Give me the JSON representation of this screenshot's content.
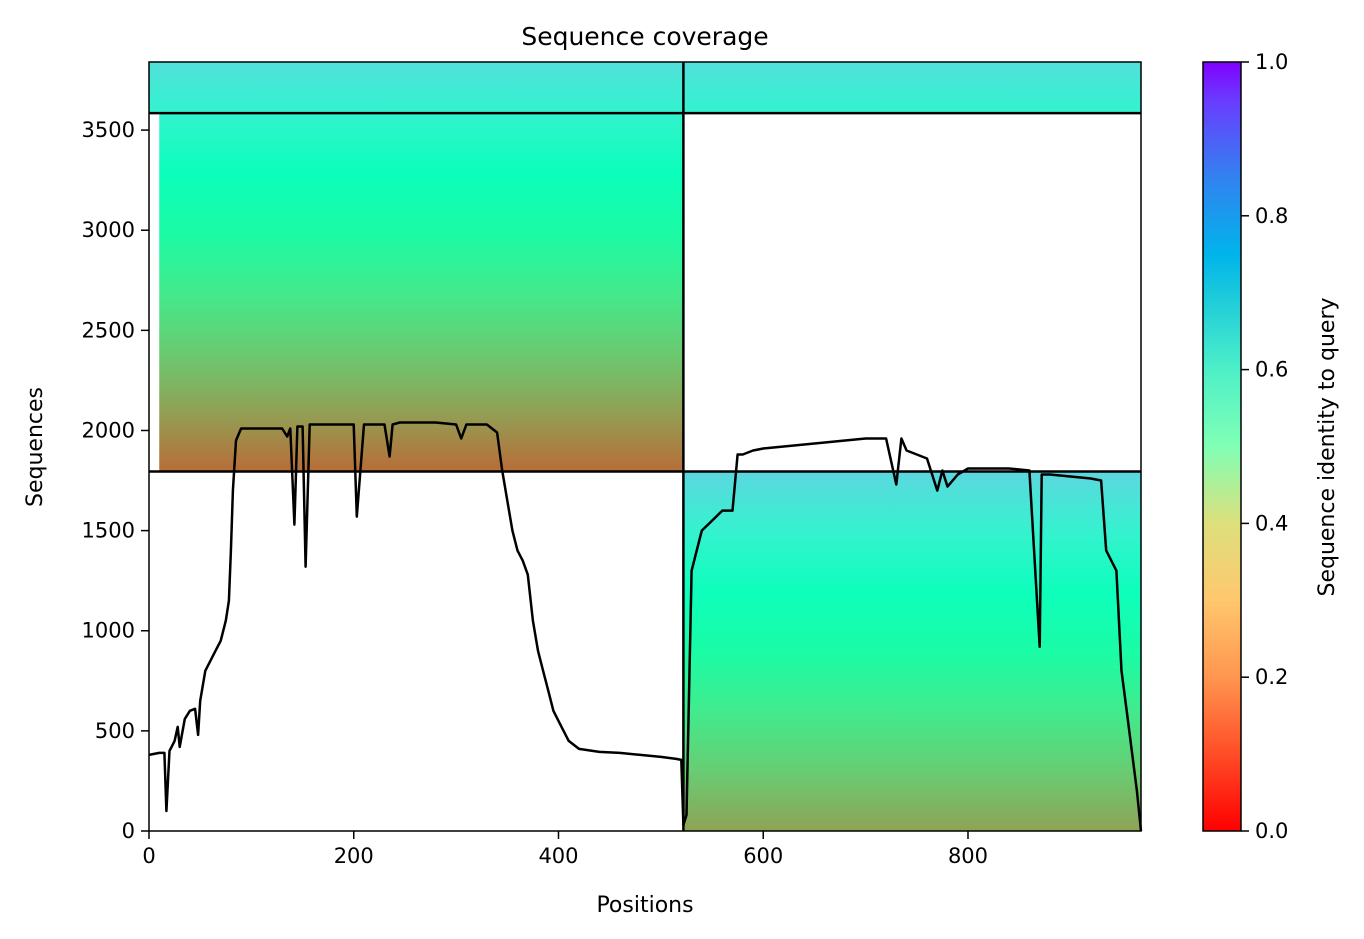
{
  "chart_data": {
    "type": "heatmap",
    "title": "Sequence coverage",
    "xlabel": "Positions",
    "ylabel": "Sequences",
    "colorbar_label": "Sequence identity to query",
    "colormap": "rainbow_r",
    "xlim": [
      0,
      969
    ],
    "ylim": [
      0,
      3840
    ],
    "x_ticks": [
      0,
      200,
      400,
      600,
      800
    ],
    "x_tick_labels": [
      "0",
      "200",
      "400",
      "600",
      "800"
    ],
    "y_ticks": [
      0,
      500,
      1000,
      1500,
      2000,
      2500,
      3000,
      3500
    ],
    "y_tick_labels": [
      "0",
      "500",
      "1000",
      "1500",
      "2000",
      "2500",
      "3000",
      "3500"
    ],
    "colorbar_ticks": [
      0.0,
      0.2,
      0.4,
      0.6,
      0.8,
      1.0
    ],
    "colorbar_tick_labels": [
      "0.0",
      "0.2",
      "0.4",
      "0.6",
      "0.8",
      "1.0"
    ],
    "colorbar_range": [
      0.0,
      1.0
    ],
    "chain_boundary_x": 522,
    "chain_boundaries_y": [
      1795,
      3585
    ],
    "blocks": [
      {
        "name": "paired block",
        "x_start": 0,
        "x_end": 969,
        "y_start": 3585,
        "y_end": 3840,
        "identity_top": 0.66,
        "identity_bottom": 0.6
      },
      {
        "name": "chain A block",
        "x_start": 10,
        "x_end": 522,
        "y_start": 1795,
        "y_end": 3585,
        "identity_top": 0.6,
        "identity_bottom": 0.14
      },
      {
        "name": "chain B block",
        "x_start": 522,
        "x_end": 969,
        "y_start": 0,
        "y_end": 1795,
        "identity_top": 0.68,
        "identity_bottom": 0.22
      }
    ],
    "coverage_line": {
      "x": [
        0,
        10,
        15,
        17,
        20,
        25,
        28,
        30,
        35,
        40,
        45,
        48,
        50,
        55,
        60,
        65,
        70,
        75,
        78,
        80,
        82,
        85,
        90,
        100,
        110,
        120,
        130,
        135,
        138,
        142,
        145,
        150,
        153,
        157,
        160,
        170,
        180,
        190,
        200,
        203,
        210,
        230,
        235,
        238,
        245,
        260,
        280,
        300,
        305,
        310,
        320,
        330,
        340,
        345,
        350,
        355,
        360,
        365,
        370,
        375,
        380,
        385,
        390,
        395,
        400,
        410,
        420,
        440,
        460,
        480,
        500,
        515,
        520,
        522,
        525,
        530,
        540,
        550,
        560,
        570,
        575,
        580,
        585,
        590,
        600,
        620,
        640,
        660,
        680,
        700,
        720,
        730,
        735,
        740,
        750,
        760,
        770,
        775,
        780,
        790,
        800,
        820,
        840,
        860,
        870,
        872,
        880,
        900,
        920,
        930,
        935,
        940,
        945,
        950,
        955,
        960,
        965,
        969
      ],
      "y": [
        380,
        390,
        390,
        100,
        400,
        450,
        520,
        420,
        560,
        600,
        610,
        480,
        650,
        800,
        850,
        900,
        950,
        1050,
        1150,
        1400,
        1700,
        1950,
        2010,
        2010,
        2010,
        2010,
        2010,
        1970,
        2010,
        1530,
        2020,
        2020,
        1320,
        2030,
        2030,
        2030,
        2030,
        2030,
        2030,
        1570,
        2030,
        2030,
        1870,
        2030,
        2040,
        2040,
        2040,
        2030,
        1960,
        2030,
        2030,
        2030,
        1990,
        1800,
        1650,
        1500,
        1400,
        1350,
        1280,
        1050,
        900,
        800,
        700,
        600,
        550,
        450,
        410,
        395,
        390,
        380,
        370,
        360,
        355,
        30,
        80,
        1300,
        1500,
        1550,
        1600,
        1600,
        1880,
        1880,
        1890,
        1900,
        1910,
        1920,
        1930,
        1940,
        1950,
        1960,
        1960,
        1730,
        1960,
        1900,
        1880,
        1860,
        1700,
        1800,
        1720,
        1780,
        1810,
        1810,
        1810,
        1800,
        920,
        1780,
        1780,
        1770,
        1760,
        1750,
        1400,
        1350,
        1300,
        800,
        600,
        400,
        200,
        0
      ]
    }
  }
}
